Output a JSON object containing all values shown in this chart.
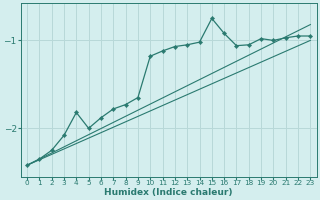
{
  "xlabel": "Humidex (Indice chaleur)",
  "background_color": "#d4eeee",
  "grid_color": "#b8d8d8",
  "line_color": "#2a7a70",
  "xlim": [
    -0.5,
    23.5
  ],
  "ylim": [
    -2.55,
    -0.58
  ],
  "yticks": [
    -2,
    -1
  ],
  "xticks": [
    0,
    1,
    2,
    3,
    4,
    5,
    6,
    7,
    8,
    9,
    10,
    11,
    12,
    13,
    14,
    15,
    16,
    17,
    18,
    19,
    20,
    21,
    22,
    23
  ],
  "curve_x": [
    0,
    1,
    2,
    3,
    4,
    5,
    6,
    7,
    8,
    9,
    10,
    11,
    12,
    13,
    14,
    15,
    16,
    17,
    18,
    19,
    20,
    21,
    22,
    23
  ],
  "curve_y": [
    -2.42,
    -2.35,
    -2.25,
    -2.08,
    -1.82,
    -2.0,
    -1.88,
    -1.78,
    -1.73,
    -1.65,
    -1.18,
    -1.12,
    -1.07,
    -1.05,
    -1.02,
    -0.75,
    -0.92,
    -1.06,
    -1.05,
    -0.98,
    -1.0,
    -0.97,
    -0.95,
    -0.95
  ],
  "line1_x": [
    0,
    23
  ],
  "line1_y": [
    -2.42,
    -0.82
  ],
  "line2_x": [
    0,
    23
  ],
  "line2_y": [
    -2.42,
    -1.0
  ]
}
